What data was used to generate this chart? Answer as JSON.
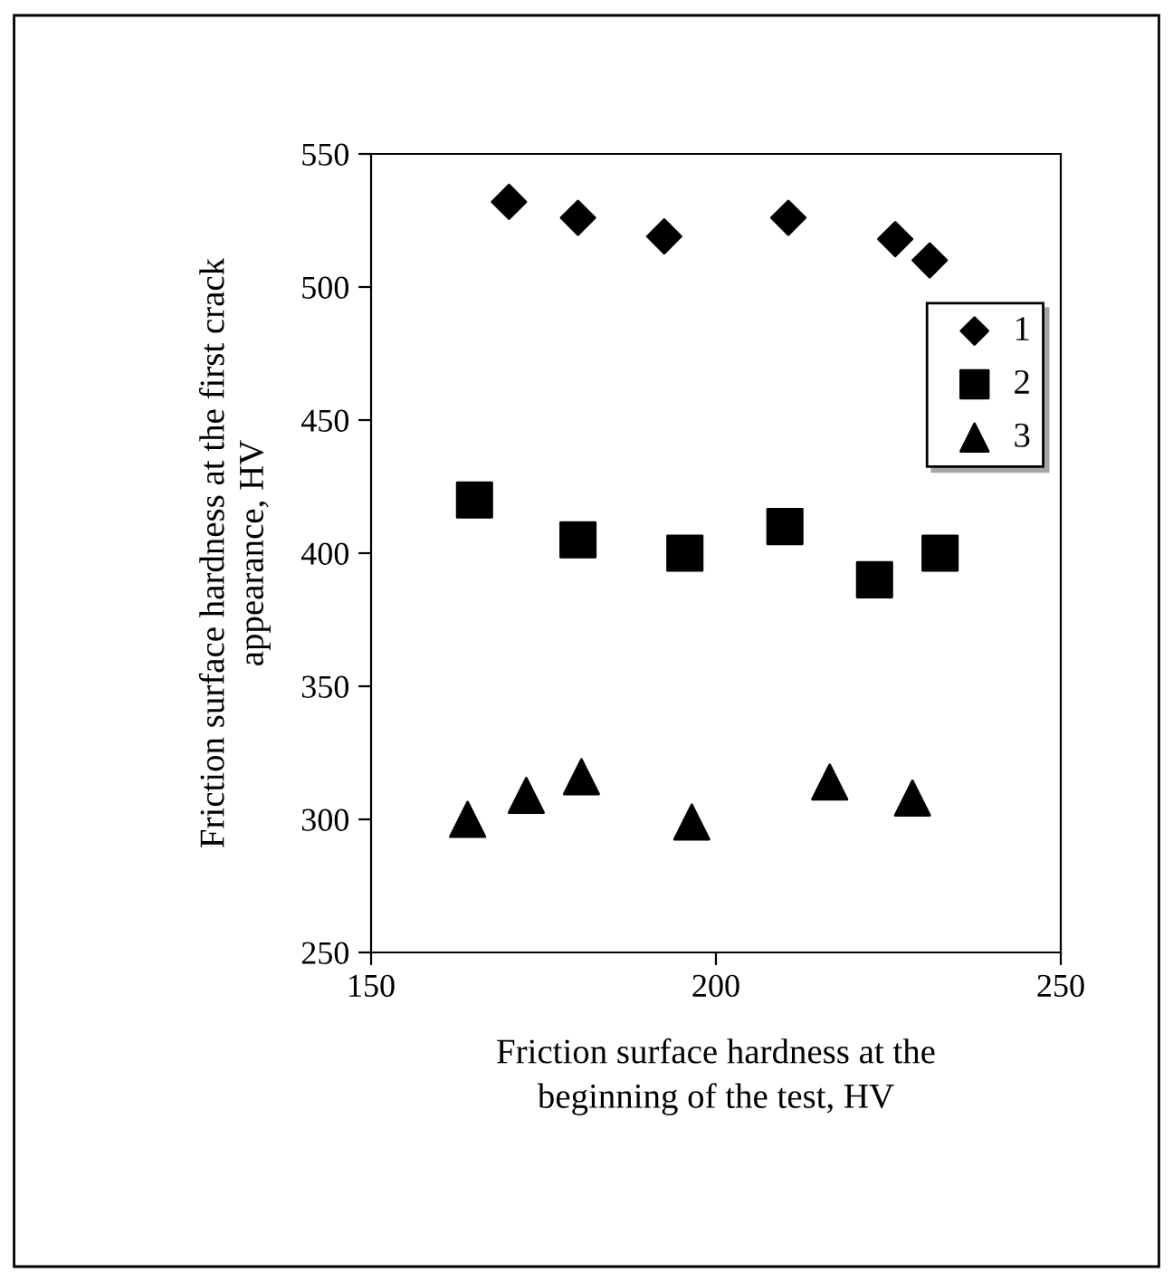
{
  "chart_data": {
    "type": "scatter",
    "xlabel": "Friction surface hardness at the\nbeginning of the test, HV",
    "ylabel": "Friction surface hardness at the first crack\nappearance, HV",
    "xlim": [
      150,
      250
    ],
    "xticks": [
      150,
      200,
      250
    ],
    "ylim": [
      250,
      550
    ],
    "yticks": [
      250,
      300,
      350,
      400,
      450,
      500,
      550
    ],
    "grid": false,
    "legend": "right",
    "series": [
      {
        "name": "1",
        "color": "#000000",
        "marker": "diamond",
        "x": [
          170,
          180,
          192.5,
          210.5,
          226,
          231
        ],
        "values": [
          532,
          526,
          519,
          526,
          518,
          510
        ]
      },
      {
        "name": "2",
        "color": "#000000",
        "marker": "square",
        "x": [
          165,
          180,
          195.5,
          210,
          223,
          232.5
        ],
        "values": [
          420,
          405,
          400,
          410,
          390,
          400
        ]
      },
      {
        "name": "3",
        "color": "#000000",
        "marker": "triangle",
        "x": [
          164,
          172.5,
          180.5,
          196.5,
          216.5,
          228.5
        ],
        "values": [
          300,
          309,
          316,
          299,
          314,
          308
        ]
      }
    ]
  }
}
